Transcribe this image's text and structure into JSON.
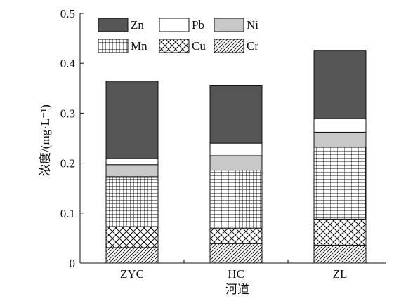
{
  "chart_data": {
    "type": "bar",
    "stacked": true,
    "xlabel": "河道",
    "ylabel": "浓度/(mg·L⁻¹)",
    "ylim": [
      0,
      0.5
    ],
    "yticks": [
      0,
      0.1,
      0.2,
      0.3,
      0.4,
      0.5
    ],
    "ytick_labels": [
      "0",
      "0.1",
      "0.2",
      "0.3",
      "0.4",
      "0.5"
    ],
    "grid": false,
    "legend_position": "top-left",
    "categories": [
      "ZYC",
      "HC",
      "ZL"
    ],
    "series": [
      {
        "name": "Cr",
        "pattern": "diagonal-hatch",
        "values": [
          0.031,
          0.039,
          0.036
        ]
      },
      {
        "name": "Cu",
        "pattern": "cross-hatch",
        "values": [
          0.042,
          0.031,
          0.052
        ]
      },
      {
        "name": "Mn",
        "pattern": "grid",
        "values": [
          0.1,
          0.116,
          0.144
        ]
      },
      {
        "name": "Ni",
        "pattern": "solid-light-gray",
        "values": [
          0.024,
          0.029,
          0.03
        ]
      },
      {
        "name": "Pb",
        "pattern": "solid-white",
        "values": [
          0.012,
          0.025,
          0.027
        ]
      },
      {
        "name": "Zn",
        "pattern": "solid-dark-gray",
        "values": [
          0.155,
          0.116,
          0.137
        ]
      }
    ],
    "legend_order": [
      "Zn",
      "Pb",
      "Ni",
      "Mn",
      "Cu",
      "Cr"
    ],
    "colors": {
      "dark": "#555555",
      "light": "#c8c8c8",
      "white": "#ffffff",
      "stroke": "#111111"
    }
  }
}
